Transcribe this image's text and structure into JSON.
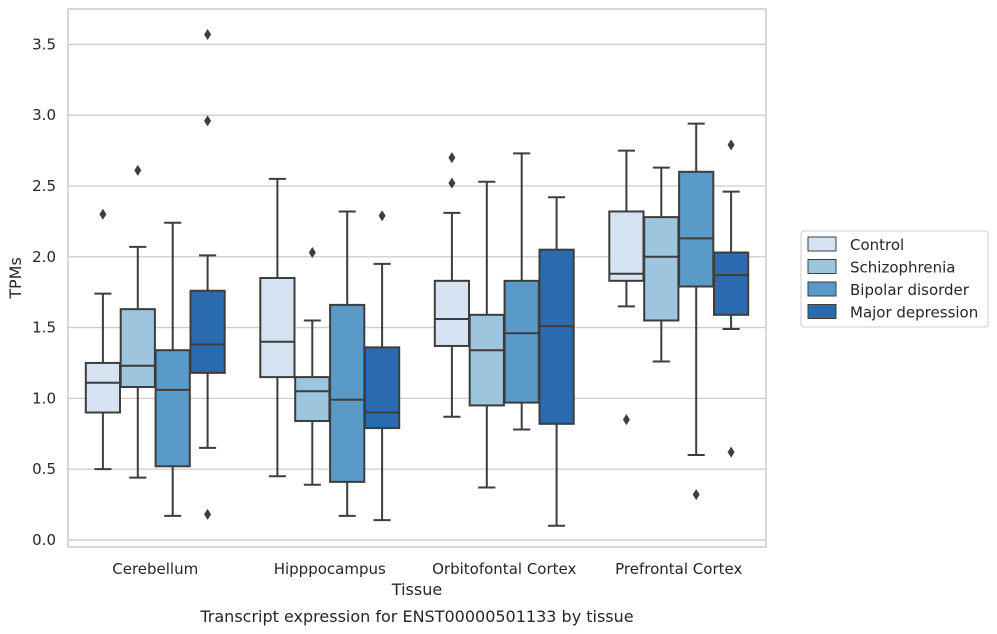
{
  "caption": "Transcript expression for ENST00000501133 by tissue",
  "chart_data": {
    "type": "boxplot",
    "xlabel": "Tissue",
    "ylabel": "TPMs",
    "ylim": [
      -0.05,
      3.75
    ],
    "yticks": [
      "0.0",
      "0.5",
      "1.0",
      "1.5",
      "2.0",
      "2.5",
      "3.0",
      "3.5"
    ],
    "grid": "horizontal",
    "legend_position": "right",
    "categories": [
      "Cerebellum",
      "Hipppocampus",
      "Orbitofontal Cortex",
      "Prefrontal Cortex"
    ],
    "series": [
      {
        "name": "Control",
        "color": "#d4e2f2",
        "boxes": [
          {
            "q1": 0.9,
            "median": 1.11,
            "q3": 1.25,
            "whisker_low": 0.5,
            "whisker_high": 1.74,
            "outliers": [
              2.3
            ]
          },
          {
            "q1": 1.15,
            "median": 1.4,
            "q3": 1.85,
            "whisker_low": 0.45,
            "whisker_high": 2.55,
            "outliers": []
          },
          {
            "q1": 1.37,
            "median": 1.56,
            "q3": 1.83,
            "whisker_low": 0.87,
            "whisker_high": 2.31,
            "outliers": [
              2.52,
              2.7
            ]
          },
          {
            "q1": 1.83,
            "median": 1.88,
            "q3": 2.32,
            "whisker_low": 1.65,
            "whisker_high": 2.75,
            "outliers": [
              0.85
            ]
          }
        ]
      },
      {
        "name": "Schizophrenia",
        "color": "#9cc5de",
        "boxes": [
          {
            "q1": 1.08,
            "median": 1.23,
            "q3": 1.63,
            "whisker_low": 0.44,
            "whisker_high": 2.07,
            "outliers": [
              2.61
            ]
          },
          {
            "q1": 0.84,
            "median": 1.05,
            "q3": 1.15,
            "whisker_low": 0.39,
            "whisker_high": 1.55,
            "outliers": [
              2.03
            ]
          },
          {
            "q1": 0.95,
            "median": 1.34,
            "q3": 1.59,
            "whisker_low": 0.37,
            "whisker_high": 2.53,
            "outliers": []
          },
          {
            "q1": 1.55,
            "median": 2.0,
            "q3": 2.28,
            "whisker_low": 1.26,
            "whisker_high": 2.63,
            "outliers": []
          }
        ]
      },
      {
        "name": "Bipolar disorder",
        "color": "#5a9ac8",
        "boxes": [
          {
            "q1": 0.52,
            "median": 1.06,
            "q3": 1.34,
            "whisker_low": 0.17,
            "whisker_high": 2.24,
            "outliers": []
          },
          {
            "q1": 0.41,
            "median": 0.99,
            "q3": 1.66,
            "whisker_low": 0.17,
            "whisker_high": 2.32,
            "outliers": []
          },
          {
            "q1": 0.97,
            "median": 1.46,
            "q3": 1.83,
            "whisker_low": 0.78,
            "whisker_high": 2.73,
            "outliers": []
          },
          {
            "q1": 1.79,
            "median": 2.13,
            "q3": 2.6,
            "whisker_low": 0.6,
            "whisker_high": 2.94,
            "outliers": [
              0.32
            ]
          }
        ]
      },
      {
        "name": "Major depression",
        "color": "#2a6bb0",
        "boxes": [
          {
            "q1": 1.18,
            "median": 1.38,
            "q3": 1.76,
            "whisker_low": 0.65,
            "whisker_high": 2.01,
            "outliers": [
              0.18,
              2.96,
              3.57
            ]
          },
          {
            "q1": 0.79,
            "median": 0.9,
            "q3": 1.36,
            "whisker_low": 0.14,
            "whisker_high": 1.95,
            "outliers": [
              2.29
            ]
          },
          {
            "q1": 0.82,
            "median": 1.51,
            "q3": 2.05,
            "whisker_low": 0.1,
            "whisker_high": 2.42,
            "outliers": []
          },
          {
            "q1": 1.59,
            "median": 1.87,
            "q3": 2.03,
            "whisker_low": 1.49,
            "whisker_high": 2.46,
            "outliers": [
              0.62,
              2.79
            ]
          }
        ]
      }
    ]
  }
}
